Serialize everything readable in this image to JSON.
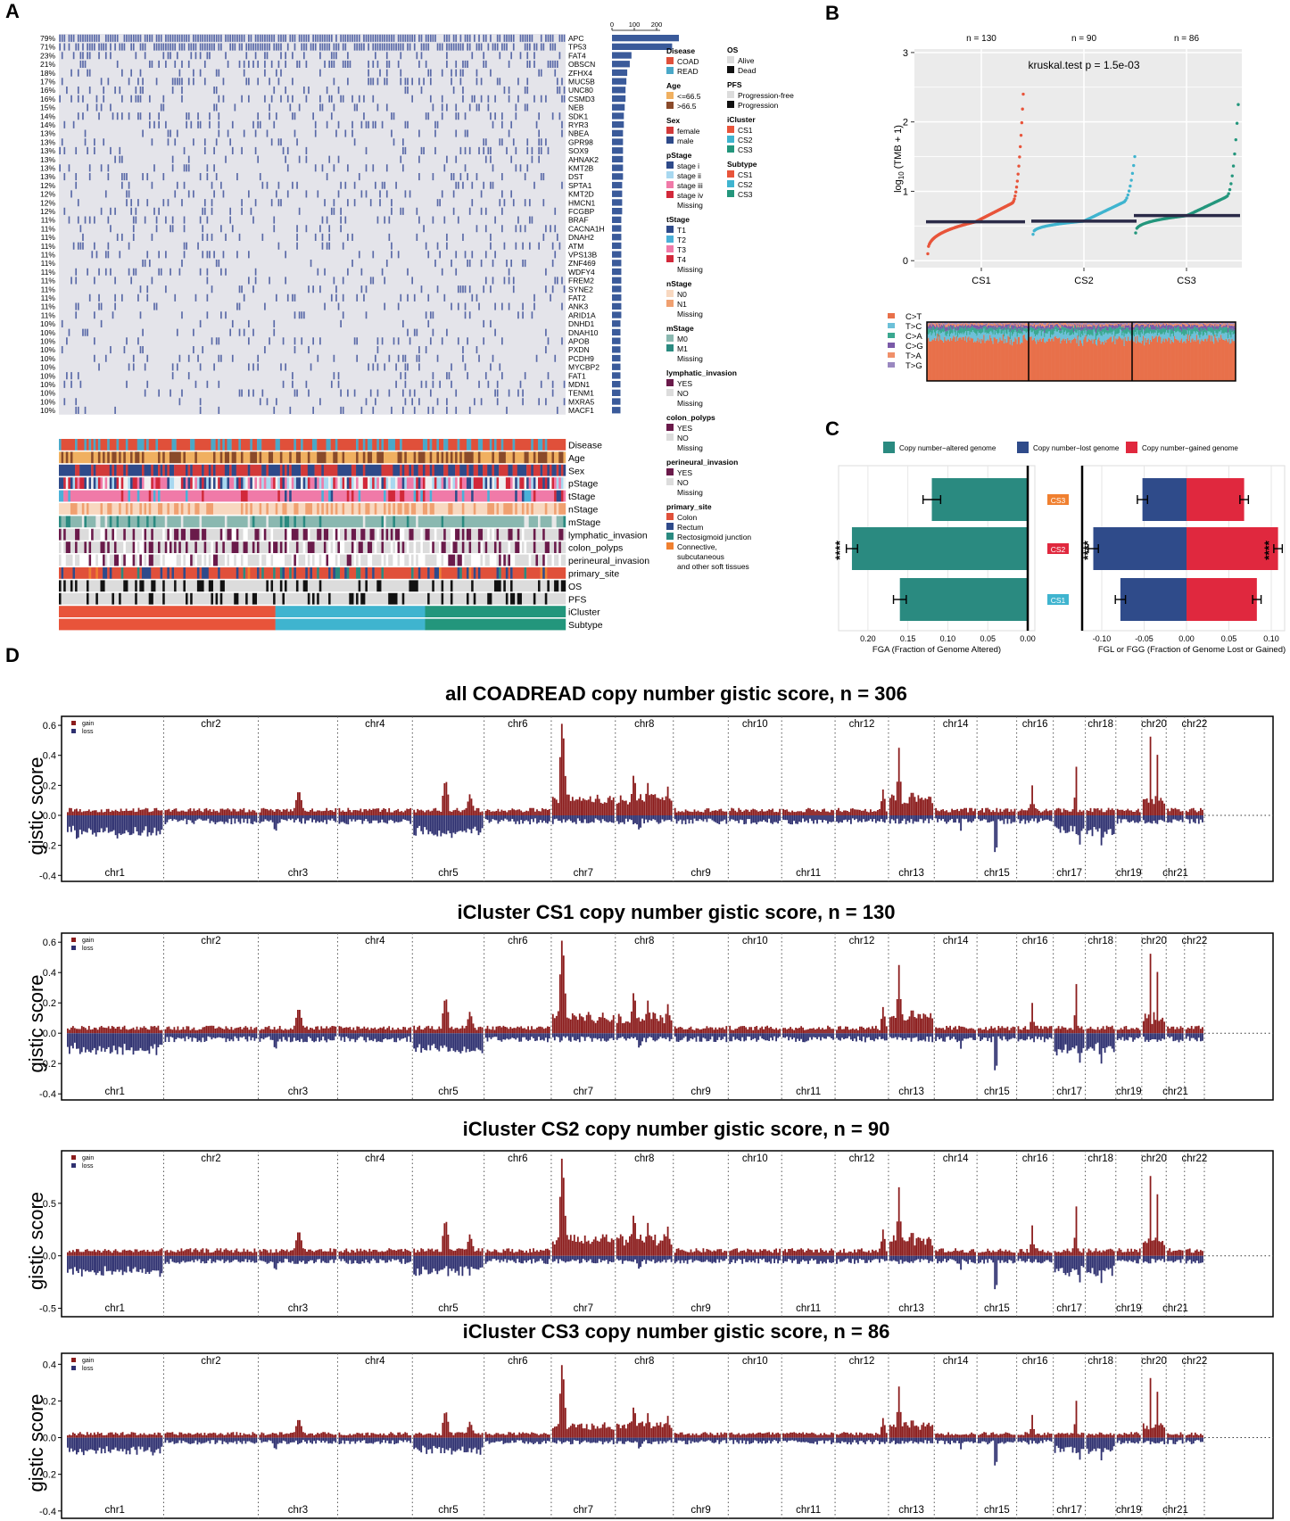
{
  "panel_labels": {
    "a": "A",
    "b": "B",
    "c": "C",
    "d": "D"
  },
  "colors": {
    "gain": "#8b1c1c",
    "loss": "#2e3070",
    "cs1": "#e8543a",
    "cs2": "#3fb4cf",
    "cs3": "#23967c",
    "mut": "#5a6aa8",
    "gridbg": "#ebebeb",
    "bar": "#3a5a9a",
    "fga": "#2a8a80",
    "fgl": "#2f4b8a",
    "fgg": "#e0283e",
    "coad": "#e0503a",
    "read": "#4aa8c8"
  },
  "oncoprint": {
    "genes": [
      "APC",
      "TP53",
      "FAT4",
      "OBSCN",
      "ZFHX4",
      "MUC5B",
      "UNC80",
      "CSMD3",
      "NEB",
      "SDK1",
      "RYR3",
      "NBEA",
      "GPR98",
      "SOX9",
      "AHNAK2",
      "KMT2B",
      "DST",
      "SPTA1",
      "KMT2D",
      "HMCN1",
      "FCGBP",
      "BRAF",
      "CACNA1H",
      "DNAH2",
      "ATM",
      "VPS13B",
      "ZNF469",
      "WDFY4",
      "FREM2",
      "SYNE2",
      "FAT2",
      "ANK3",
      "ARID1A",
      "DNHD1",
      "DNAH10",
      "APOB",
      "PXDN",
      "PCDH9",
      "MYCBP2",
      "FAT1",
      "MDN1",
      "TENM1",
      "MXRA5",
      "MACF1"
    ],
    "pcts": [
      "79%",
      "71%",
      "23%",
      "21%",
      "18%",
      "17%",
      "16%",
      "16%",
      "15%",
      "14%",
      "14%",
      "13%",
      "13%",
      "13%",
      "13%",
      "13%",
      "13%",
      "12%",
      "12%",
      "12%",
      "12%",
      "11%",
      "11%",
      "11%",
      "11%",
      "11%",
      "11%",
      "11%",
      "11%",
      "11%",
      "11%",
      "11%",
      "11%",
      "10%",
      "10%",
      "10%",
      "10%",
      "10%",
      "10%",
      "10%",
      "10%",
      "10%",
      "10%",
      "10%"
    ],
    "ticks": [
      "0",
      "100",
      "200"
    ],
    "annotation_tracks": [
      "Disease",
      "Age",
      "Sex",
      "pStage",
      "tStage",
      "nStage",
      "mStage",
      "lymphatic_invasion",
      "colon_polyps",
      "perineural_invasion",
      "primary_site",
      "OS",
      "PFS",
      "iCluster",
      "Subtype"
    ]
  },
  "legend": {
    "col1": [
      {
        "title": "Disease",
        "items": [
          [
            "COAD",
            "#e0503a"
          ],
          [
            "READ",
            "#4aa8c8"
          ]
        ]
      },
      {
        "title": "Age",
        "items": [
          [
            "<=66.5",
            "#f0b060"
          ],
          [
            ">66.5",
            "#8a4a2a"
          ]
        ]
      },
      {
        "title": "Sex",
        "items": [
          [
            "female",
            "#d23a3a"
          ],
          [
            "male",
            "#2e4a8a"
          ]
        ]
      },
      {
        "title": "pStage",
        "items": [
          [
            "stage i",
            "#2e4a8a"
          ],
          [
            "stage ii",
            "#a8d8f0"
          ],
          [
            "stage iii",
            "#f07aa8"
          ],
          [
            "stage iv",
            "#d2283a"
          ],
          [
            "Missing",
            ""
          ]
        ]
      },
      {
        "title": "tStage",
        "items": [
          [
            "T1",
            "#2e4a8a"
          ],
          [
            "T2",
            "#4ab0d8"
          ],
          [
            "T3",
            "#f07aa8"
          ],
          [
            "T4",
            "#d2283a"
          ],
          [
            "Missing",
            ""
          ]
        ]
      },
      {
        "title": "nStage",
        "items": [
          [
            "N0",
            "#f8d8c0"
          ],
          [
            "N1",
            "#f0a070"
          ],
          [
            "Missing",
            ""
          ]
        ]
      },
      {
        "title": "mStage",
        "items": [
          [
            "M0",
            "#8ab8b0"
          ],
          [
            "M1",
            "#2a8a80"
          ],
          [
            "Missing",
            ""
          ]
        ]
      },
      {
        "title": "lymphatic_invasion",
        "items": [
          [
            "YES",
            "#6a1a4a"
          ],
          [
            "NO",
            "#dcdcdc"
          ],
          [
            "Missing",
            ""
          ]
        ]
      },
      {
        "title": "colon_polyps",
        "items": [
          [
            "YES",
            "#6a1a4a"
          ],
          [
            "NO",
            "#dcdcdc"
          ],
          [
            "Missing",
            ""
          ]
        ]
      },
      {
        "title": "perineural_invasion",
        "items": [
          [
            "YES",
            "#6a1a4a"
          ],
          [
            "NO",
            "#dcdcdc"
          ],
          [
            "Missing",
            ""
          ]
        ]
      },
      {
        "title": "primary_site",
        "items": [
          [
            "Colon",
            "#e0503a"
          ],
          [
            "Rectum",
            "#2e4a8a"
          ],
          [
            "Rectosigmoid junction",
            "#2a8a80"
          ],
          [
            "Connective, subcutaneous and other soft tissues",
            "#f08030"
          ]
        ]
      }
    ],
    "col2": [
      {
        "title": "OS",
        "items": [
          [
            "Alive",
            "#dcdcdc"
          ],
          [
            "Dead",
            "#111111"
          ]
        ]
      },
      {
        "title": "PFS",
        "items": [
          [
            "Progression-free",
            "#dcdcdc"
          ],
          [
            "Progression",
            "#111111"
          ]
        ]
      },
      {
        "title": "iCluster",
        "items": [
          [
            "CS1",
            "#e8543a"
          ],
          [
            "CS2",
            "#3fb4cf"
          ],
          [
            "CS3",
            "#23967c"
          ]
        ]
      },
      {
        "title": "Subtype",
        "items": [
          [
            "CS1",
            "#e8543a"
          ],
          [
            "CS2",
            "#3fb4cf"
          ],
          [
            "CS3",
            "#23967c"
          ]
        ]
      }
    ]
  },
  "chart_data": [
    {
      "id": "B_tmb",
      "type": "scatter",
      "title": "kruskal.test p = 1.5e-03",
      "ylabel_main": "log",
      "ylabel_sub": "10",
      "ylabel_rest": " (TMB + 1)",
      "categories": [
        "CS1",
        "CS2",
        "CS3"
      ],
      "n_labels": [
        "n = 130",
        "n = 90",
        "n = 86"
      ],
      "ylim": [
        -0.1,
        3.05
      ],
      "yticks": [
        "0",
        "1",
        "2",
        "3"
      ],
      "medians": [
        0.56,
        0.57,
        0.65
      ]
    },
    {
      "id": "B_spectrum",
      "type": "bar",
      "series_names": [
        "C>T",
        "T>C",
        "C>A",
        "C>G",
        "T>A",
        "T>G"
      ],
      "series_colors": [
        "#e8704a",
        "#6cc0d8",
        "#3aa890",
        "#7a5aa8",
        "#f0906a",
        "#9a88c0"
      ]
    },
    {
      "id": "C_fga",
      "type": "bar",
      "categories": [
        "CS3",
        "CS2",
        "CS1"
      ],
      "cat_colors": [
        "#f08030",
        "#e0283e",
        "#3fb4cf"
      ],
      "legend": [
        "Copy number−altered genome",
        "Copy number−lost genome",
        "Copy number−gained genome"
      ],
      "fga": [
        0.12,
        0.22,
        0.16
      ],
      "fga_err": [
        0.011,
        0.007,
        0.008
      ],
      "fgl": [
        -0.052,
        -0.11,
        -0.078
      ],
      "fgl_err": [
        0.006,
        0.006,
        0.006
      ],
      "fgg": [
        0.068,
        0.108,
        0.083
      ],
      "fgg_err": [
        0.005,
        0.005,
        0.005
      ],
      "xlabel_left": "FGA (Fraction of Genome Altered)",
      "xlabel_right": "FGL or FGG (Fraction of Genome Lost or Gained)",
      "ticks_left": [
        "0.20",
        "0.15",
        "0.10",
        "0.05",
        "0.00"
      ],
      "ticks_right": [
        "-0.10",
        "-0.05",
        "0.00",
        "0.05",
        "0.10"
      ],
      "sig": "****"
    },
    {
      "id": "D_gistic",
      "type": "area",
      "ylabel": "gistic score",
      "legend": [
        "gain",
        "loss"
      ],
      "chroms_top": [
        "chr2",
        "chr4",
        "chr6",
        "chr8",
        "chr10",
        "chr12",
        "chr14",
        "chr16",
        "chr18",
        "chr20",
        "chr22"
      ],
      "chroms_bottom": [
        "chr1",
        "chr3",
        "chr5",
        "chr7",
        "chr9",
        "chr11",
        "chr13",
        "chr15",
        "chr17",
        "chr19",
        "chr21"
      ],
      "panels": [
        {
          "title": "all COADREAD copy number gistic score, n = 306",
          "ylim": [
            -0.44,
            0.66
          ],
          "yticks": [
            "0.6",
            "0.4",
            "0.2",
            "0.0",
            "-0.2",
            "-0.4"
          ]
        },
        {
          "title": "iCluster CS1 copy number gistic score, n = 130",
          "ylim": [
            -0.44,
            0.66
          ],
          "yticks": [
            "0.6",
            "0.4",
            "0.2",
            "0.0",
            "-0.2",
            "-0.4"
          ]
        },
        {
          "title": "iCluster CS2 copy number gistic score, n = 90",
          "ylim": [
            -0.58,
            1.0
          ],
          "yticks": [
            "0.5",
            "0.0",
            "-0.5"
          ]
        },
        {
          "title": "iCluster CS3 copy number gistic score, n = 86",
          "ylim": [
            -0.44,
            0.46
          ],
          "yticks": [
            "0.4",
            "0.2",
            "0.0",
            "-0.2",
            "-0.4"
          ]
        }
      ]
    }
  ]
}
